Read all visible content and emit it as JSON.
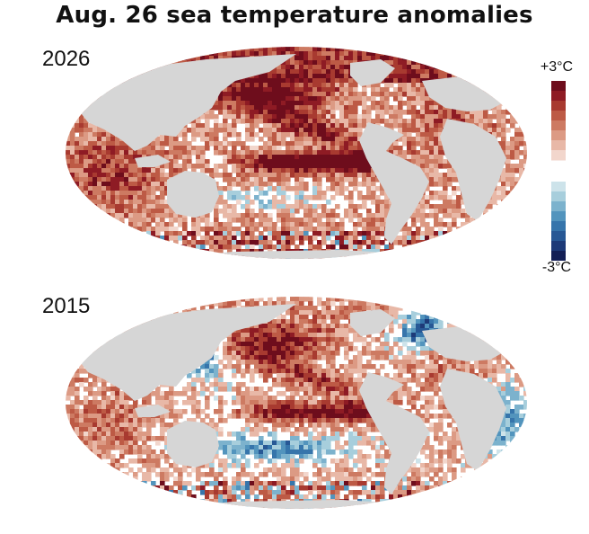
{
  "title": "Aug. 26 sea temperature anomalies",
  "maps": [
    {
      "year": "2026",
      "pattern": "strong-el-nino"
    },
    {
      "year": "2015",
      "pattern": "moderate-el-nino"
    }
  ],
  "legend": {
    "max_label": "+3°C",
    "min_label": "-3°C",
    "warm_colors": [
      "#6e0d1c",
      "#8e1b24",
      "#a83a30",
      "#bd5a45",
      "#cd7a62",
      "#dc9a84",
      "#e8b8a7",
      "#f2d6cc"
    ],
    "cool_colors": [
      "#cde3ea",
      "#a7cedc",
      "#7cb2cd",
      "#5294bd",
      "#3675ab",
      "#275895",
      "#1d3a78",
      "#131f55"
    ]
  },
  "colors": {
    "land": "#d6d6d6",
    "ocean_neutral": "#ffffff"
  }
}
